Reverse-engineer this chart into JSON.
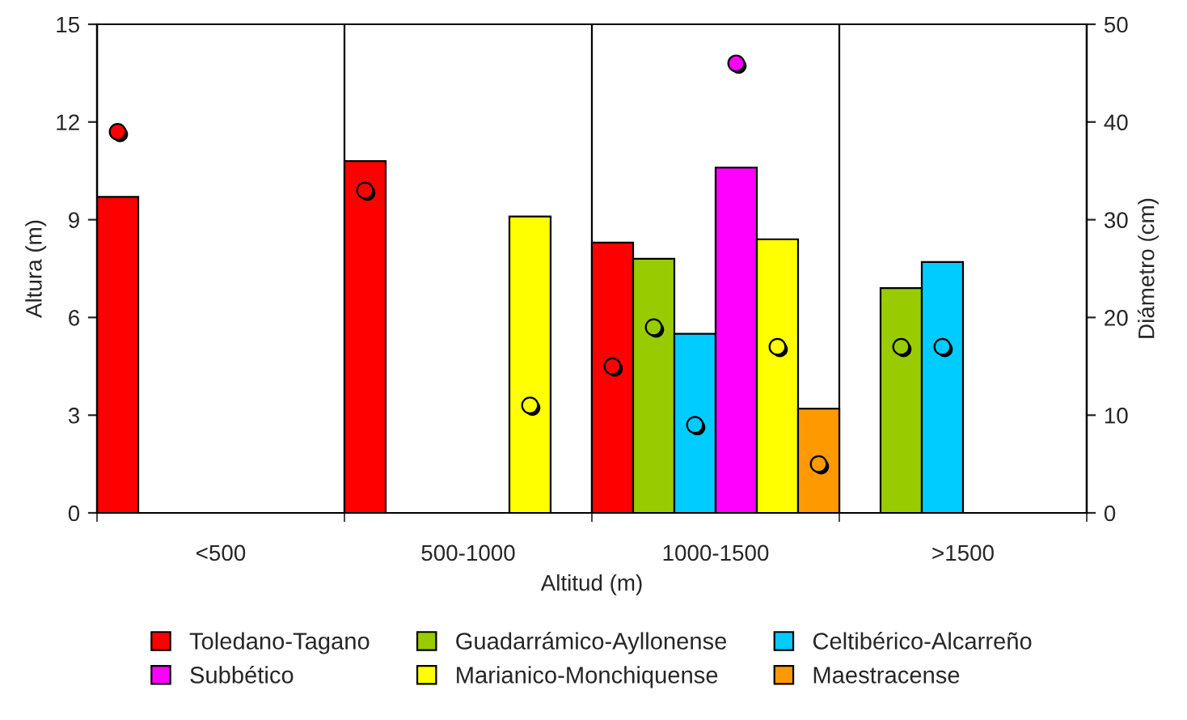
{
  "chart_data": {
    "type": "bar",
    "xlabel": "Altitud (m)",
    "ylabel": "Altura (m)",
    "y2label": "Diámetro (cm)",
    "categories": [
      "<500",
      "500-1000",
      "1000-1500",
      ">1500"
    ],
    "ylim": [
      0,
      15
    ],
    "yticks": [
      0,
      3,
      6,
      9,
      12,
      15
    ],
    "y2lim": [
      0,
      50
    ],
    "y2ticks": [
      0,
      10,
      20,
      30,
      40,
      50
    ],
    "grid": "x",
    "legend": "bottom",
    "marker": "circle",
    "series": [
      {
        "name": "Toledano-Tagano",
        "color": "#ff0000",
        "values": [
          9.7,
          10.8,
          8.3,
          null
        ]
      },
      {
        "name": "Guadarrámico-Ayllonense",
        "color": "#99cc00",
        "values": [
          null,
          null,
          7.8,
          6.9
        ]
      },
      {
        "name": "Celtibérico-Alcarreño",
        "color": "#00ccff",
        "values": [
          null,
          null,
          5.5,
          7.7
        ]
      },
      {
        "name": "Subbético",
        "color": "#ff00ff",
        "values": [
          null,
          null,
          10.6,
          null
        ]
      },
      {
        "name": "Marianico-Monchiquense",
        "color": "#ffff00",
        "values": [
          null,
          9.1,
          8.4,
          null
        ]
      },
      {
        "name": "Maestracense",
        "color": "#ff9900",
        "values": [
          null,
          null,
          3.2,
          null
        ]
      },
      {
        "type": "scatter",
        "axis": "y2",
        "color": "#ff0000",
        "values": [
          39,
          33,
          15,
          null
        ]
      },
      {
        "type": "scatter",
        "axis": "y2",
        "color": "#99cc00",
        "values": [
          null,
          null,
          19,
          17
        ]
      },
      {
        "type": "scatter",
        "axis": "y2",
        "color": "#00ccff",
        "values": [
          null,
          null,
          9,
          17
        ]
      },
      {
        "type": "scatter",
        "axis": "y2",
        "color": "#ff00ff",
        "values": [
          null,
          null,
          46,
          null
        ]
      },
      {
        "type": "scatter",
        "axis": "y2",
        "color": "#ffff00",
        "values": [
          null,
          11,
          17,
          null
        ]
      },
      {
        "type": "scatter",
        "axis": "y2",
        "color": "#ff9900",
        "values": [
          null,
          null,
          5,
          null
        ]
      }
    ]
  }
}
